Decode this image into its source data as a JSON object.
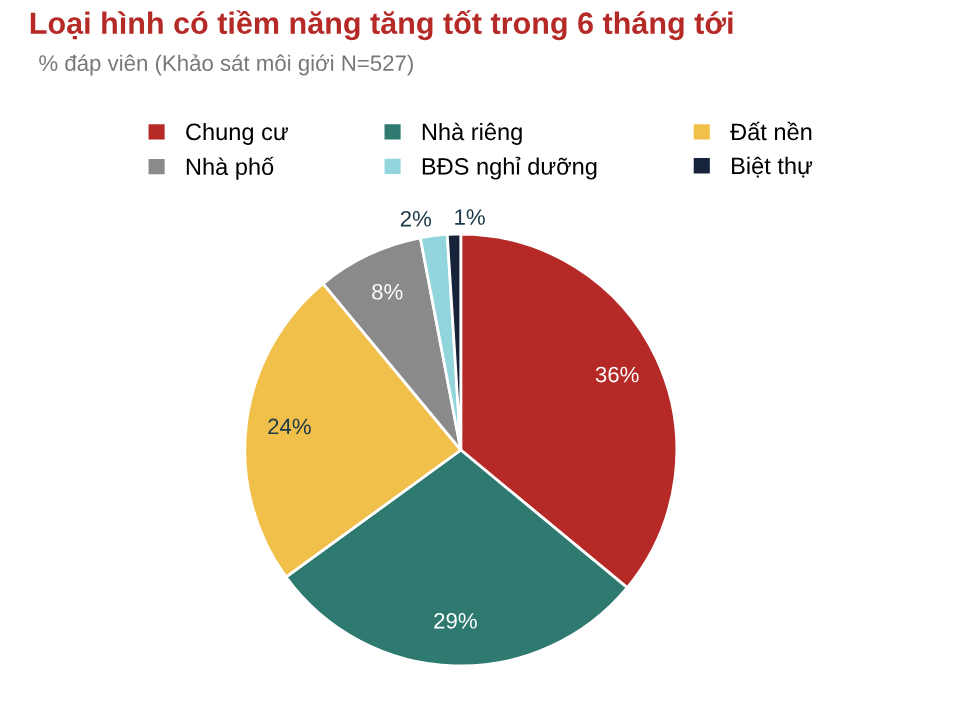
{
  "chart_data": {
    "type": "pie",
    "title": "Loại hình có tiềm năng tăng tốt trong 6 tháng tới",
    "subtitle": "% đáp viên (Khảo sát môi giới N=527)",
    "categories": [
      "Chung cư",
      "Nhà riêng",
      "Đất nền",
      "Nhà phố",
      "BĐS nghỉ dưỡng",
      "Biệt thự"
    ],
    "values": [
      36,
      29,
      24,
      8,
      2,
      1
    ],
    "colors": [
      "#b52a27",
      "#2f7a70",
      "#f1c04b",
      "#8a8a8a",
      "#92d5dc",
      "#17233a"
    ],
    "value_labels": [
      "36%",
      "29%",
      "24%",
      "8%",
      "2%",
      "1%"
    ],
    "legend": "top"
  }
}
